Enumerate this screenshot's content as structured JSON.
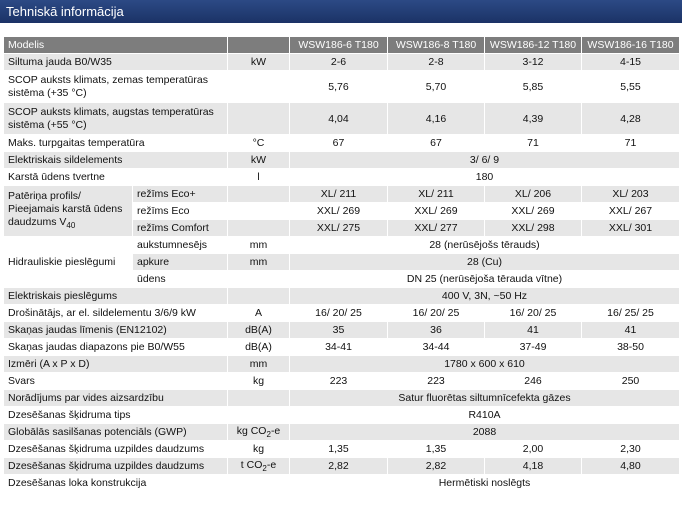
{
  "header": {
    "title": "Tehniskā informācija"
  },
  "table": {
    "columns": [
      "Modelis",
      "WSW186-6 T180",
      "WSW186-8 T180",
      "WSW186-12 T180",
      "WSW186-16 T180"
    ],
    "rows": [
      {
        "label": "Siltuma jauda B0/W35",
        "unit": "kW",
        "values": [
          "2-6",
          "2-8",
          "3-12",
          "4-15"
        ]
      },
      {
        "label": "SCOP auksts klimats, zemas temperatūras sistēma (+35 °C)",
        "values": [
          "5,76",
          "5,70",
          "5,85",
          "5,55"
        ]
      },
      {
        "label": "SCOP auksts klimats, augstas temperatūras sistēma (+55 °C)",
        "values": [
          "4,04",
          "4,16",
          "4,39",
          "4,28"
        ]
      },
      {
        "label": "Maks. turpgaitas temperatūra",
        "unit": "°C",
        "values": [
          "67",
          "67",
          "71",
          "71"
        ]
      },
      {
        "label": "Elektriskais sildelements",
        "unit": "kW",
        "values": [
          "3/ 6/ 9"
        ]
      },
      {
        "label": "Karstā ūdens tvertne",
        "unit": "l",
        "values": [
          "180"
        ]
      },
      {
        "label": "Patēriņa profils/ Pieejamais karstā ūdens daudzums V",
        "label_sub": "40",
        "sub_rows": [
          {
            "label": "režīms Eco+",
            "values": [
              "XL/ 211",
              "XL/ 211",
              "XL/ 206",
              "XL/ 203"
            ]
          },
          {
            "label": "režīms Eco",
            "values": [
              "XXL/ 269",
              "XXL/ 269",
              "XXL/ 269",
              "XXL/ 267"
            ]
          },
          {
            "label": "režīms Comfort",
            "values": [
              "XXL/ 275",
              "XXL/ 277",
              "XXL/ 298",
              "XXL/ 301"
            ]
          }
        ]
      },
      {
        "label": "Hidrauliskie pieslēgumi",
        "sub_rows": [
          {
            "label": "aukstumnesējs",
            "unit": "mm",
            "values": [
              "28 (nerūsējošs tērauds)"
            ]
          },
          {
            "label": "apkure",
            "unit": "mm",
            "values": [
              "28 (Cu)"
            ]
          },
          {
            "label": "ūdens",
            "values": [
              "DN 25 (nerūsējoša tērauda vītne)"
            ]
          }
        ]
      },
      {
        "label": "Elektriskais pieslēgums",
        "values": [
          "400 V, 3N, ~50 Hz"
        ]
      },
      {
        "label": "Drošinātājs, ar el. sildelementu 3/6/9 kW",
        "unit": "A",
        "values": [
          "16/ 20/ 25",
          "16/ 20/ 25",
          "16/ 20/ 25",
          "16/ 25/ 25"
        ]
      },
      {
        "label": "Skaņas jaudas līmenis (EN12102)",
        "unit": "dB(A)",
        "values": [
          "35",
          "36",
          "41",
          "41"
        ]
      },
      {
        "label": "Skaņas jaudas diapazons pie B0/W55",
        "unit": "dB(A)",
        "values": [
          "34-41",
          "34-44",
          "37-49",
          "38-50"
        ]
      },
      {
        "label": "Izmēri (A x P x D)",
        "unit": "mm",
        "values": [
          "1780 x 600 x 610"
        ]
      },
      {
        "label": "Svars",
        "unit": "kg",
        "values": [
          "223",
          "223",
          "246",
          "250"
        ]
      },
      {
        "label": "Norādījums par vides aizsardzību",
        "values": [
          "Satur fluorētas siltumnīcefekta gāzes"
        ]
      },
      {
        "label": "Dzesēšanas šķidruma tips",
        "values": [
          "R410A"
        ]
      },
      {
        "label": "Globālās sasilšanas potenciāls (GWP)",
        "unit": "kg CO",
        "unit_sub": "2",
        "unit_end": "-e",
        "values": [
          "2088"
        ]
      },
      {
        "label": "Dzesēšanas šķidruma uzpildes daudzums",
        "unit": "kg",
        "values": [
          "1,35",
          "1,35",
          "2,00",
          "2,30"
        ]
      },
      {
        "label": "Dzesēšanas šķidruma uzpildes daudzums",
        "unit": "t CO",
        "unit_sub": "2",
        "unit_end": "-e",
        "values": [
          "2,82",
          "2,82",
          "4,18",
          "4,80"
        ]
      },
      {
        "label": "Dzesēšanas loka konstrukcija",
        "values": [
          "Hermētiski noslēgts"
        ]
      }
    ]
  }
}
